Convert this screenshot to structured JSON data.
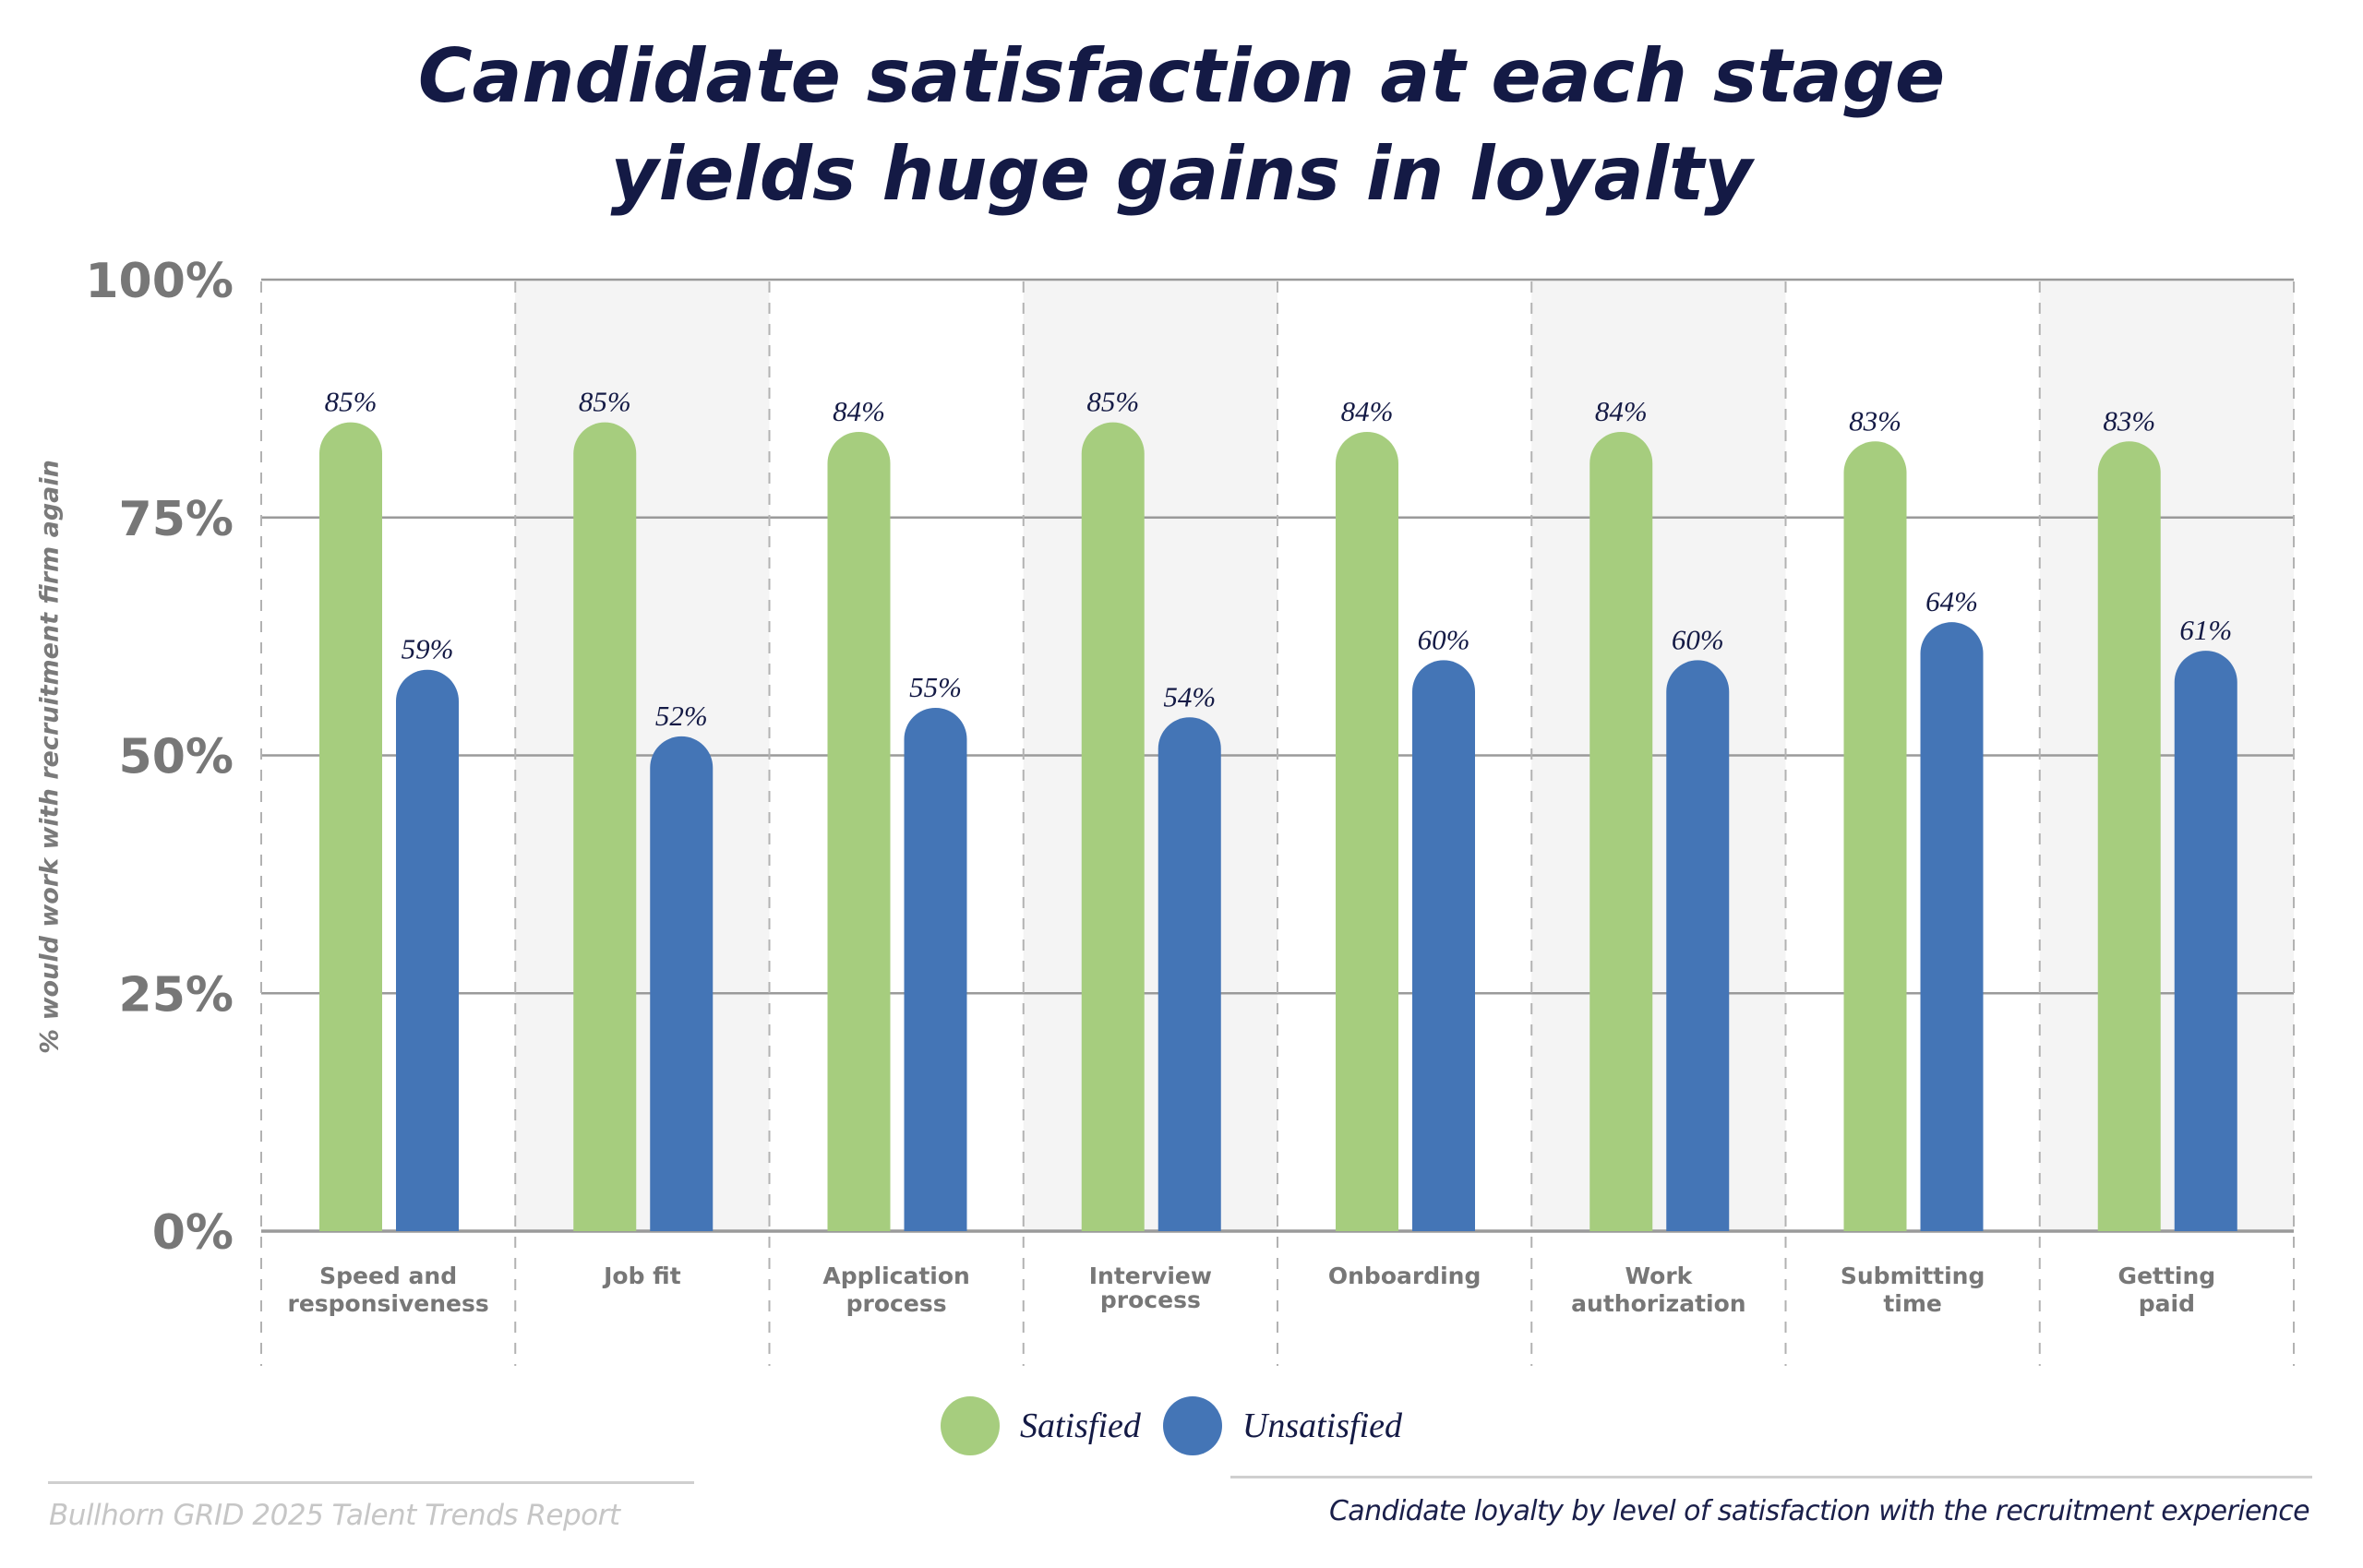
{
  "title": {
    "line1": "Candidate satisfaction at each stage",
    "line2": "yields huge gains in loyalty"
  },
  "colors": {
    "satisfied": "#a6cd7e",
    "unsatisfied": "#4475b6",
    "title": "#141a45",
    "axis_text": "#777777",
    "value_label": "#141a45",
    "band_shade": "#f4f4f4",
    "grid": "#9a9a9a"
  },
  "chart_data": {
    "type": "bar",
    "title": "Candidate satisfaction at each stage yields huge gains in loyalty",
    "xlabel": "",
    "ylabel": "% would work with recruitment firm again",
    "ylim": [
      0,
      100
    ],
    "yticks": [
      0,
      25,
      50,
      75,
      100
    ],
    "ytick_labels": [
      "0%",
      "25%",
      "50%",
      "75%",
      "100%"
    ],
    "grid": true,
    "legend_position": "bottom-center",
    "categories": [
      [
        "Speed and",
        "responsiveness"
      ],
      [
        "Job fit"
      ],
      [
        "Application",
        "process"
      ],
      [
        "Interview",
        "process"
      ],
      [
        "Onboarding"
      ],
      [
        "Work",
        "authorization"
      ],
      [
        "Submitting",
        "time"
      ],
      [
        "Getting",
        "paid"
      ]
    ],
    "series": [
      {
        "name": "Satisfied",
        "values": [
          85,
          85,
          84,
          85,
          84,
          84,
          83,
          83
        ],
        "labels": [
          "85%",
          "85%",
          "84%",
          "85%",
          "84%",
          "84%",
          "83%",
          "83%"
        ]
      },
      {
        "name": "Unsatisfied",
        "values": [
          59,
          52,
          55,
          54,
          60,
          60,
          64,
          61
        ],
        "labels": [
          "59%",
          "52%",
          "55%",
          "54%",
          "60%",
          "60%",
          "64%",
          "61%"
        ]
      }
    ]
  },
  "legend": {
    "items": [
      {
        "label": "Satisfied"
      },
      {
        "label": "Unsatisfied"
      }
    ]
  },
  "footer": {
    "source": "Bullhorn GRID 2025 Talent Trends Report",
    "caption": "Candidate loyalty by level of satisfaction with the recruitment experience"
  }
}
